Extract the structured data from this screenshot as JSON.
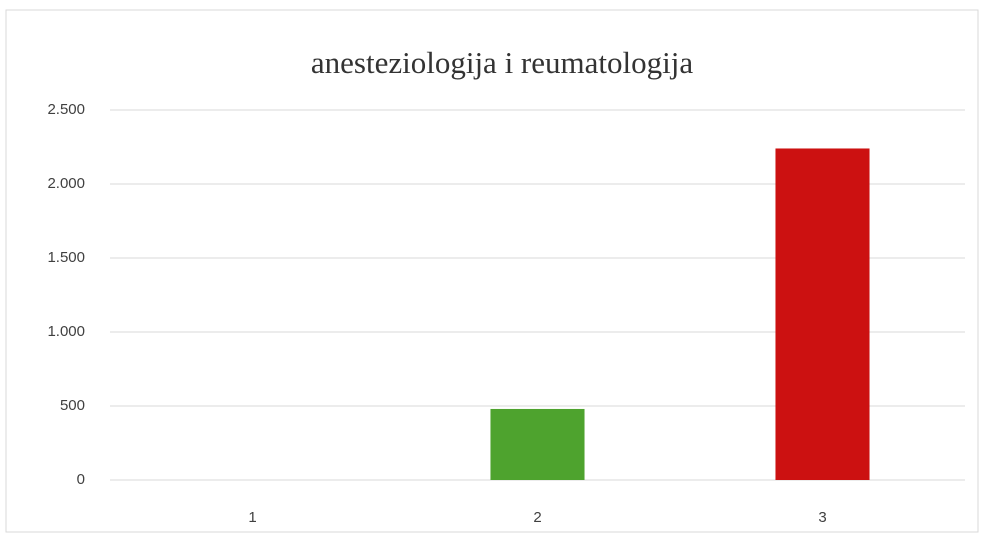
{
  "chart_data": {
    "type": "bar",
    "title": "anesteziologija i reumatologija",
    "categories": [
      "1",
      "2",
      "3"
    ],
    "values": [
      0,
      480,
      2240
    ],
    "colors": [
      null,
      "#4ea32e",
      "#cc1111"
    ],
    "ylim": [
      0,
      2500
    ],
    "yticks": [
      0,
      500,
      {
        "value": 1000,
        "label": "1.000"
      },
      {
        "value": 1500,
        "label": "1.500"
      },
      {
        "value": 2000,
        "label": "2.000"
      },
      {
        "value": 2500,
        "label": "2.500"
      }
    ],
    "grid": true
  }
}
